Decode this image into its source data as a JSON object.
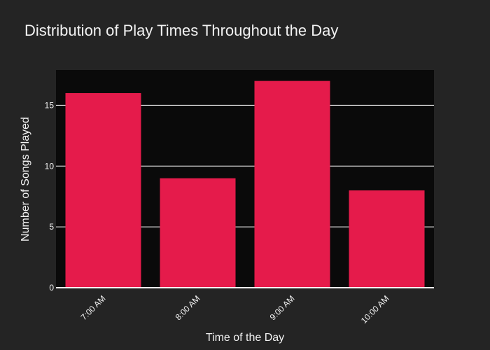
{
  "chart_data": {
    "type": "bar",
    "title": "Distribution of Play Times Throughout the Day",
    "xlabel": "Time of the Day",
    "ylabel": "Number of Songs Played",
    "categories": [
      "7:00 AM",
      "8:00 AM",
      "9:00 AM",
      "10:00 AM"
    ],
    "values": [
      16,
      9,
      17,
      8
    ],
    "ylim": [
      0,
      17.9
    ],
    "yticks": [
      0,
      5,
      10,
      15
    ],
    "grid": true,
    "legend": "none",
    "colors": {
      "bar": "#e51b4b",
      "plot_background": "#0a0a0a",
      "page_background": "#242424",
      "text": "#f2f2f2"
    }
  }
}
